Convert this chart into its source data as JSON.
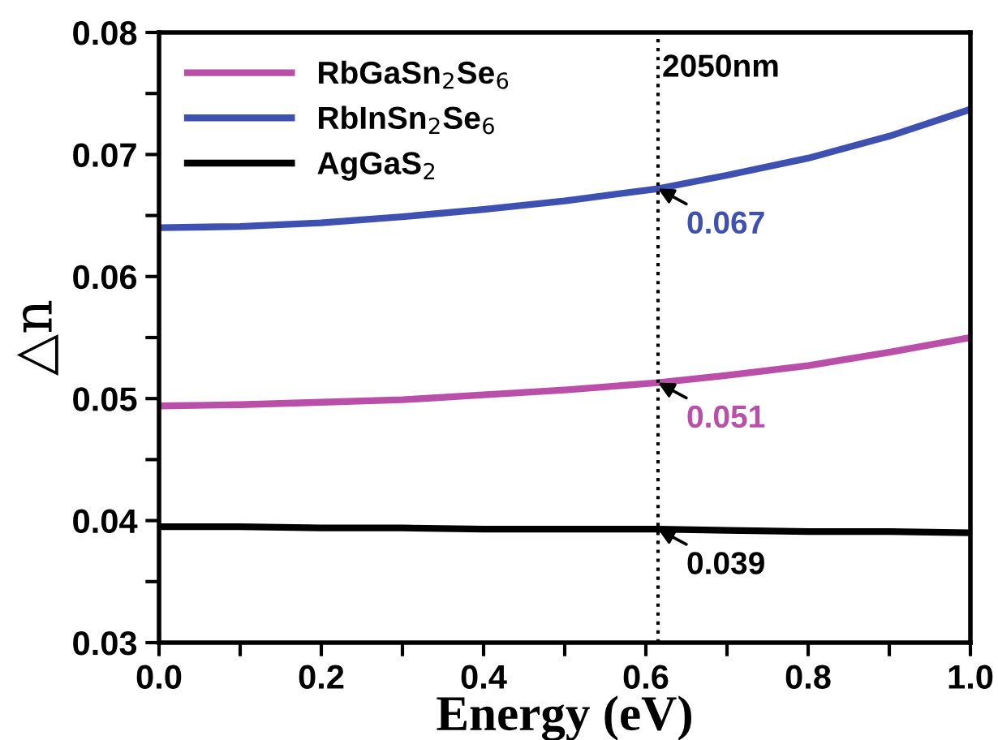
{
  "chart_data": {
    "type": "line",
    "xlabel": "Energy (eV)",
    "ylabel": "△n",
    "x": [
      0.0,
      0.1,
      0.2,
      0.3,
      0.4,
      0.5,
      0.615,
      0.7,
      0.8,
      0.9,
      1.0
    ],
    "series": [
      {
        "name": "RbGaSn$_{2}$Se$_{6}$",
        "color": "#b94fa8",
        "values": [
          0.0494,
          0.0495,
          0.0497,
          0.0499,
          0.0503,
          0.0507,
          0.0513,
          0.0519,
          0.0527,
          0.0538,
          0.055
        ],
        "value_labels": [
          null,
          null,
          null,
          null,
          null,
          null,
          "0.051",
          null,
          null,
          null,
          null
        ]
      },
      {
        "name": "RbInSn$_{2}$Se$_{6}$",
        "color": "#3f51b0",
        "values": [
          0.064,
          0.0641,
          0.0644,
          0.0649,
          0.0655,
          0.0662,
          0.0672,
          0.0683,
          0.0697,
          0.0715,
          0.0737
        ],
        "value_labels": [
          null,
          null,
          null,
          null,
          null,
          null,
          "0.067",
          null,
          null,
          null,
          null
        ]
      },
      {
        "name": "AgGaS$_{2}$",
        "color": "#000000",
        "values": [
          0.0395,
          0.0395,
          0.0394,
          0.0394,
          0.0393,
          0.0393,
          0.0393,
          0.0392,
          0.0391,
          0.0391,
          0.039
        ],
        "value_labels": [
          null,
          null,
          null,
          null,
          null,
          null,
          "0.039",
          null,
          null,
          null,
          null
        ]
      }
    ],
    "xlim": [
      0.0,
      1.0
    ],
    "ylim": [
      0.03,
      0.08
    ],
    "xticks": [
      {
        "value": 0,
        "label": "0.0"
      },
      {
        "value": 0.1,
        "label": null
      },
      0.2,
      {
        "value": 0.3,
        "label": null
      },
      0.4,
      {
        "value": 0.5,
        "label": null
      },
      0.6,
      {
        "value": 0.7,
        "label": null
      },
      0.8,
      {
        "value": 0.9,
        "label": null
      },
      {
        "value": 1,
        "label": "1.0"
      }
    ],
    "yticks": [
      0.03,
      {
        "value": 0.035,
        "label": null
      },
      0.04,
      {
        "value": 0.045,
        "label": null
      },
      0.05,
      {
        "value": 0.055,
        "label": null
      },
      0.06,
      {
        "value": 0.065,
        "label": null
      },
      0.07,
      {
        "value": 0.075,
        "label": null
      },
      0.08
    ],
    "ref_lines": [
      {
        "axis": "x",
        "value": 0.615,
        "label": "2050nm",
        "color": "#000000",
        "line_style": "dotted"
      }
    ],
    "legend": "top left",
    "grid": false,
    "marker": "none",
    "line_style": "solid"
  }
}
